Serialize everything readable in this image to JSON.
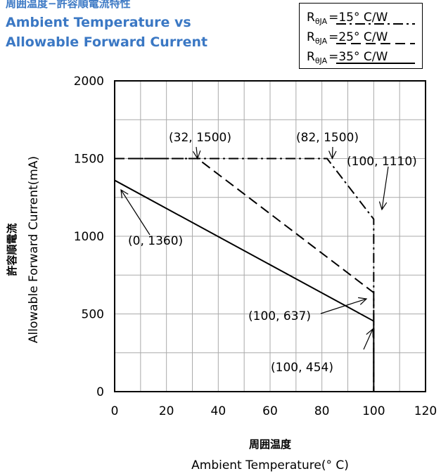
{
  "title": {
    "jp": "周囲温度−許容順電流特性",
    "en_line1": "Ambient Temperature vs",
    "en_line2": "Allowable Forward Current"
  },
  "legend": [
    {
      "r": "R",
      "sub": "θJA",
      "value": "=15°  C/W",
      "style": "dash-dot"
    },
    {
      "r": "R",
      "sub": "θJA",
      "value": "=25°  C/W",
      "style": "dashed"
    },
    {
      "r": "R",
      "sub": "θJA",
      "value": "=35°  C/W",
      "style": "solid"
    }
  ],
  "axes": {
    "xlabel_jp": "周囲温度",
    "xlabel_en": "Ambient Temperature(°  C)",
    "ylabel_jp": "許容順電流",
    "ylabel_en": "Allowable Forward Current(mA)"
  },
  "chart_data": {
    "type": "line",
    "xlim": [
      0,
      120
    ],
    "ylim": [
      0,
      2000
    ],
    "xticks": [
      0,
      20,
      40,
      60,
      80,
      100,
      120
    ],
    "yticks": [
      0,
      500,
      1000,
      1500,
      2000
    ],
    "grid": true,
    "series": [
      {
        "name": "RθJA=15° C/W",
        "style": "dash-dot",
        "x": [
          0,
          82,
          100,
          100
        ],
        "y": [
          1500,
          1500,
          1110,
          0
        ]
      },
      {
        "name": "RθJA=25° C/W",
        "style": "dashed",
        "x": [
          0,
          32,
          100,
          100
        ],
        "y": [
          1500,
          1500,
          637,
          0
        ]
      },
      {
        "name": "RθJA=35° C/W",
        "style": "solid",
        "x": [
          0,
          100,
          100
        ],
        "y": [
          1360,
          454,
          0
        ]
      }
    ],
    "annotations": [
      {
        "text": "(32, 1500)",
        "x": 32,
        "y": 1500
      },
      {
        "text": "(82, 1500)",
        "x": 82,
        "y": 1500
      },
      {
        "text": "(100, 1110)",
        "x": 100,
        "y": 1110
      },
      {
        "text": "(0, 1360)",
        "x": 0,
        "y": 1360
      },
      {
        "text": "(100, 637)",
        "x": 100,
        "y": 637
      },
      {
        "text": "(100, 454)",
        "x": 100,
        "y": 454
      }
    ]
  }
}
